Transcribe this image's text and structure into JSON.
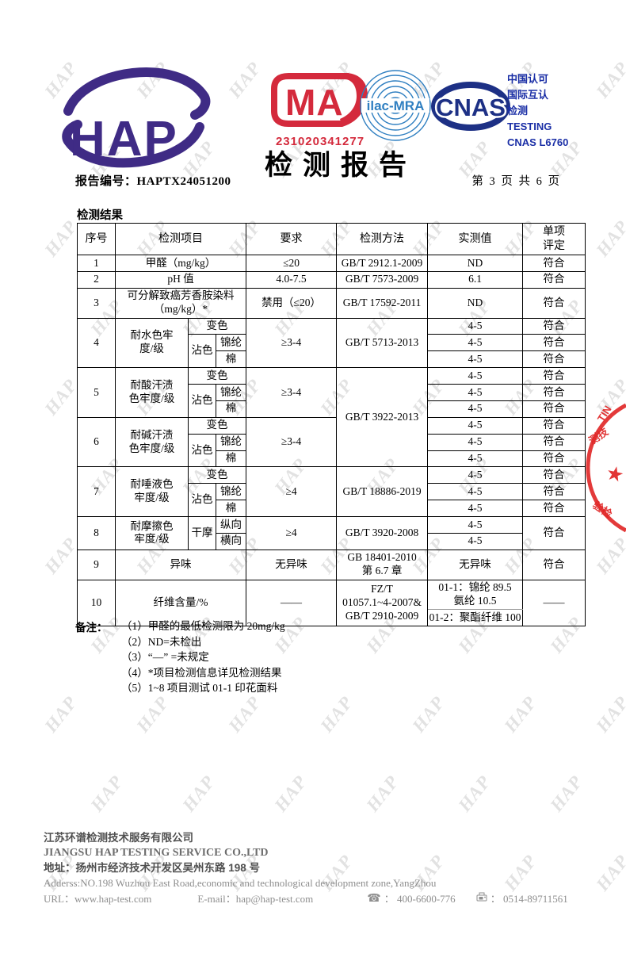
{
  "watermark": {
    "text": "HAP"
  },
  "header": {
    "logo_text": "HAP",
    "cma_label": "MA",
    "cma_number": "231020341277",
    "ilac_label": "ilac-MRA",
    "cnas_label": "CNAS",
    "accreditation_lines": [
      "中国认可",
      "国际互认",
      "检测",
      "TESTING",
      "CNAS L6760"
    ],
    "title": "检测报告",
    "report_no_label": "报告编号：",
    "report_no": "HAPTX24051200",
    "page_info": "第 3 页 共 6 页"
  },
  "results": {
    "section_title": "检测结果",
    "table": {
      "columns": [
        "序号",
        "检测项目",
        "要求",
        "检测方法",
        "实测值",
        "单项评定"
      ],
      "rows": [
        [
          {
            "t": "序号",
            "cls": "head"
          },
          {
            "t": "检测项目",
            "cs": 3,
            "cls": "head"
          },
          {
            "t": "要求",
            "cls": "head"
          },
          {
            "t": "检测方法",
            "cls": "head"
          },
          {
            "t": "实测值",
            "cls": "head"
          },
          {
            "t": "单项\n评定",
            "cls": "head"
          }
        ],
        [
          {
            "t": "1"
          },
          {
            "t": "甲醛（mg/kg）",
            "cs": 3
          },
          {
            "t": "≤20"
          },
          {
            "t": "GB/T 2912.1-2009"
          },
          {
            "t": "ND"
          },
          {
            "t": "符合"
          }
        ],
        [
          {
            "t": "2"
          },
          {
            "t": "pH 值",
            "cs": 3
          },
          {
            "t": "4.0-7.5"
          },
          {
            "t": "GB/T 7573-2009"
          },
          {
            "t": "6.1"
          },
          {
            "t": "符合"
          }
        ],
        [
          {
            "t": "3"
          },
          {
            "t": "可分解致癌芳香胺染料\n（mg/kg）*",
            "cs": 3
          },
          {
            "t": "禁用（≤20）"
          },
          {
            "t": "GB/T 17592-2011"
          },
          {
            "t": "ND"
          },
          {
            "t": "符合"
          }
        ],
        [
          {
            "t": "4",
            "rs": 3
          },
          {
            "t": "耐水色牢\n度/级",
            "rs": 3
          },
          {
            "t": "变色",
            "cs": 2
          },
          {
            "t": "≥3-4",
            "rs": 3
          },
          {
            "t": "GB/T 5713-2013",
            "rs": 3
          },
          {
            "t": "4-5"
          },
          {
            "t": "符合"
          }
        ],
        [
          {
            "t": "沾色",
            "rs": 2
          },
          {
            "t": "锦纶"
          },
          {
            "t": "4-5"
          },
          {
            "t": "符合"
          }
        ],
        [
          {
            "t": "棉"
          },
          {
            "t": "4-5"
          },
          {
            "t": "符合"
          }
        ],
        [
          {
            "t": "5",
            "rs": 3
          },
          {
            "t": "耐酸汗渍\n色牢度/级",
            "rs": 3
          },
          {
            "t": "变色",
            "cs": 2
          },
          {
            "t": "≥3-4",
            "rs": 3
          },
          {
            "t": "GB/T 3922-2013",
            "rs": 6
          },
          {
            "t": "4-5"
          },
          {
            "t": "符合"
          }
        ],
        [
          {
            "t": "沾色",
            "rs": 2
          },
          {
            "t": "锦纶"
          },
          {
            "t": "4-5"
          },
          {
            "t": "符合"
          }
        ],
        [
          {
            "t": "棉"
          },
          {
            "t": "4-5"
          },
          {
            "t": "符合"
          }
        ],
        [
          {
            "t": "6",
            "rs": 3
          },
          {
            "t": "耐碱汗渍\n色牢度/级",
            "rs": 3
          },
          {
            "t": "变色",
            "cs": 2
          },
          {
            "t": "≥3-4",
            "rs": 3
          },
          {
            "t": "4-5"
          },
          {
            "t": "符合"
          }
        ],
        [
          {
            "t": "沾色",
            "rs": 2
          },
          {
            "t": "锦纶"
          },
          {
            "t": "4-5"
          },
          {
            "t": "符合"
          }
        ],
        [
          {
            "t": "棉"
          },
          {
            "t": "4-5"
          },
          {
            "t": "符合"
          }
        ],
        [
          {
            "t": "7",
            "rs": 3
          },
          {
            "t": "耐唾液色\n牢度/级",
            "rs": 3
          },
          {
            "t": "变色",
            "cs": 2
          },
          {
            "t": "≥4",
            "rs": 3
          },
          {
            "t": "GB/T 18886-2019",
            "rs": 3
          },
          {
            "t": "4-5"
          },
          {
            "t": "符合"
          }
        ],
        [
          {
            "t": "沾色",
            "rs": 2
          },
          {
            "t": "锦纶"
          },
          {
            "t": "4-5"
          },
          {
            "t": "符合"
          }
        ],
        [
          {
            "t": "棉"
          },
          {
            "t": "4-5"
          },
          {
            "t": "符合"
          }
        ],
        [
          {
            "t": "8",
            "rs": 2
          },
          {
            "t": "耐摩擦色\n牢度/级",
            "rs": 2
          },
          {
            "t": "干摩",
            "rs": 2
          },
          {
            "t": "纵向"
          },
          {
            "t": "≥4",
            "rs": 2
          },
          {
            "t": "GB/T 3920-2008",
            "rs": 2
          },
          {
            "t": "4-5"
          },
          {
            "t": "符合",
            "rs": 2
          }
        ],
        [
          {
            "t": "横向"
          },
          {
            "t": "4-5"
          }
        ],
        [
          {
            "t": "9"
          },
          {
            "t": "异味",
            "cs": 3
          },
          {
            "t": "无异味"
          },
          {
            "t": "GB 18401-2010\n第 6.7 章"
          },
          {
            "t": "无异味"
          },
          {
            "t": "符合"
          }
        ],
        [
          {
            "t": "10",
            "rs": 2
          },
          {
            "t": "纤维含量/%",
            "cs": 3,
            "rs": 2
          },
          {
            "t": "——",
            "rs": 2
          },
          {
            "t": "FZ/T\n01057.1~4-2007&\nGB/T 2910-2009",
            "rs": 2
          },
          {
            "t": "01-1：锦纶 89.5\n氨纶 10.5",
            "cls": "fiber-top"
          },
          {
            "t": "——",
            "rs": 2
          }
        ],
        [
          {
            "t": "01-2：聚酯纤维 100",
            "cls": "fiber-bottom"
          }
        ]
      ]
    }
  },
  "notes": {
    "label": "备注：",
    "items": [
      "（1）甲醛的最低检测限为 20mg/kg",
      "（2）ND=未检出",
      "（3）“—” =未规定",
      "（4）*项目检测信息详见检测结果",
      "（5）1~8 项目测试 01-1 印花面料"
    ]
  },
  "footer": {
    "company_cn": "江苏环谱检测技术服务有限公司",
    "company_en": "JIANGSU HAP TESTING SERVICE CO.,LTD",
    "address_cn": "地址：扬州市经济技术开发区吴州东路 198 号",
    "address_en": "Adderss:NO.198 Wuzhou East Road,economic and technological development zone,YangZhou",
    "url_label": "URL：",
    "url": "www.hap-test.com",
    "email_label": "E-mail：",
    "email": "hap@hap-test.com",
    "phone": "400-6600-776",
    "fax": "0514-89711561"
  },
  "colors": {
    "brand_purple": "#3f2b85",
    "cma_red": "#d42a3c",
    "ilac_blue": "#2f7fc1",
    "cnas_navy": "#1d3085",
    "accreditation_blue": "#1b2fa6",
    "stamp_red": "#e02525",
    "watermark_gray": "#cbcbcb"
  }
}
